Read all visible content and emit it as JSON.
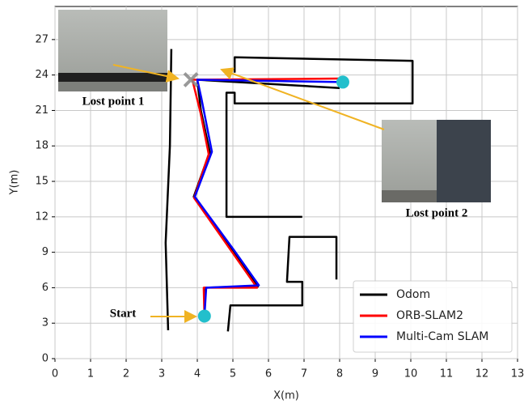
{
  "chart_data": {
    "type": "line",
    "xlabel": "X(m)",
    "ylabel": "Y(m)",
    "xlim": [
      0,
      13
    ],
    "ylim": [
      0,
      29.8
    ],
    "xticks": [
      0,
      1,
      2,
      3,
      4,
      5,
      6,
      7,
      8,
      9,
      10,
      11,
      12,
      13
    ],
    "yticks": [
      0,
      3,
      6,
      9,
      12,
      15,
      18,
      21,
      24,
      27
    ],
    "grid": true,
    "legend": "lower right",
    "series": [
      {
        "name": "Odom",
        "color": "#000000",
        "x": [
          3.18,
          3.11,
          3.23,
          3.27,
          null,
          4.86,
          4.93,
          6.95,
          6.95,
          6.52,
          6.59,
          7.91,
          7.91,
          null,
          6.95,
          4.82,
          4.82,
          5.05,
          5.05,
          10.05,
          10.05,
          5.05,
          5.05,
          null,
          4.2,
          4.2,
          5.7,
          3.9,
          4.35,
          4.1,
          4.0,
          8.0
        ],
        "values": [
          2.4,
          9.8,
          18.0,
          26.2,
          null,
          2.3,
          4.5,
          4.5,
          6.5,
          6.5,
          10.3,
          10.3,
          6.7,
          null,
          12.0,
          12.0,
          22.5,
          22.5,
          21.6,
          21.6,
          25.2,
          25.5,
          24.2,
          null,
          3.3,
          6.0,
          6.1,
          13.7,
          17.5,
          21.0,
          23.6,
          22.9
        ]
      },
      {
        "name": "ORB-SLAM2",
        "color": "#ff0000",
        "x": [
          4.2,
          4.18,
          5.68,
          3.91,
          4.32,
          4.09,
          3.86,
          8.0
        ],
        "values": [
          3.6,
          6.0,
          6.0,
          13.6,
          17.3,
          20.8,
          23.6,
          23.7
        ]
      },
      {
        "name": "Multi-Cam SLAM",
        "color": "#0000ff",
        "x": [
          4.2,
          4.25,
          5.73,
          5.05,
          3.93,
          4.41,
          4.11,
          4.0,
          8.09
        ],
        "values": [
          3.6,
          6.0,
          6.2,
          9.1,
          13.7,
          17.5,
          22.1,
          23.6,
          23.4
        ]
      }
    ],
    "lost_points": [
      {
        "x": 3.82,
        "y": 23.6
      }
    ],
    "annotations": [
      "Lost point 1",
      "Lost point 2",
      "Start"
    ]
  }
}
